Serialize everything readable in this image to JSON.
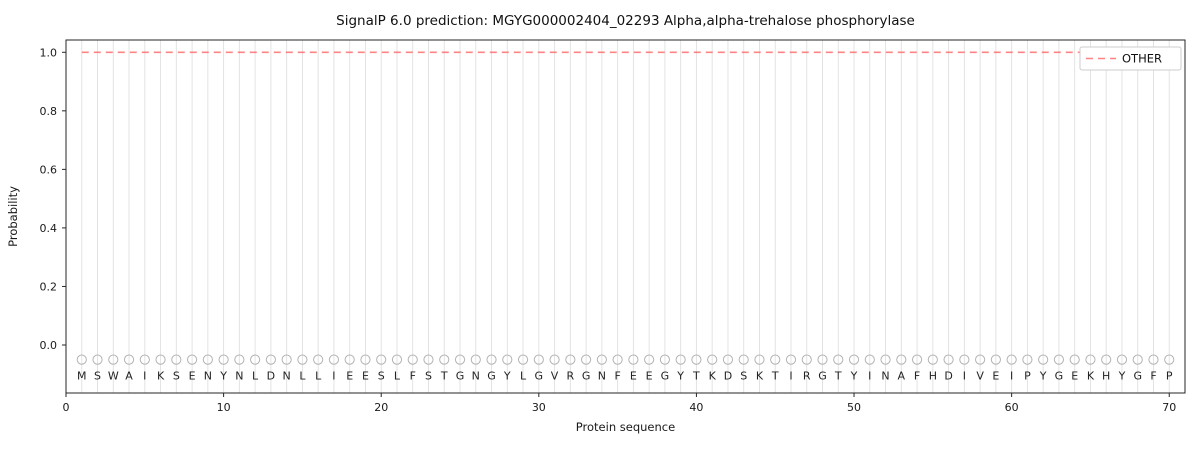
{
  "page": {
    "title": "SignalP 6.0 prediction: MGYG000002404_02293 Alpha,alpha-trehalose phosphorylase"
  },
  "chart_data": {
    "type": "line",
    "title": "SignalP 6.0 prediction: MGYG000002404_02293 Alpha,alpha-trehalose phosphorylase",
    "xlabel": "Protein sequence",
    "ylabel": "Probability",
    "x_ticks": [
      0,
      10,
      20,
      30,
      40,
      50,
      60,
      70
    ],
    "y_ticks": [
      0.0,
      0.2,
      0.4,
      0.6,
      0.8,
      1.0
    ],
    "xlim": [
      0,
      71
    ],
    "ylim": [
      -0.164,
      1.042
    ],
    "grid": {
      "vertical": true,
      "horizontal": false
    },
    "legend": {
      "position": "upper right",
      "entries": [
        {
          "label": "OTHER",
          "color": "#ff5c5c",
          "linestyle": "dashed"
        }
      ]
    },
    "sequence": "MSWAIKSENYNLDNLLIEESLFSTGNGYLGVRGNFEEGYTKDSKTIRGTYINAFHDIVEIPYGEKHYGFP",
    "series": [
      {
        "name": "OTHER",
        "linestyle": "dashed",
        "color": "#ff5c5c",
        "x_start": 1,
        "x_end": 70,
        "constant_y": 1.0
      }
    ],
    "residue_markers": {
      "marker": "o",
      "y": -0.05,
      "color": "#b3b3b3"
    },
    "colors": {
      "grid": "#e0e0e0",
      "spine": "#262626",
      "text": "#1a1a1a",
      "marker": "#b3b3b3",
      "legend_border": "#cccccc",
      "legend_bg": "#ffffff"
    }
  }
}
